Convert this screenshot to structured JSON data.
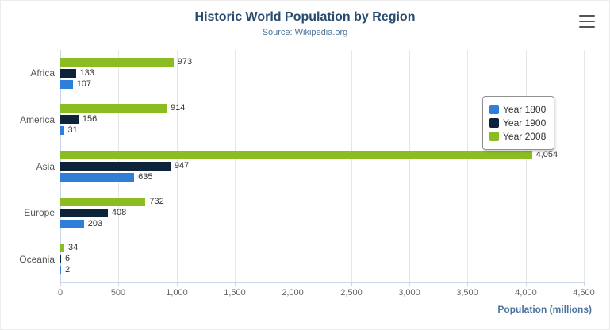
{
  "chart": {
    "title": "Historic World Population by Region",
    "subtitle": "Source: Wikipedia.org",
    "xlabel": "Population (millions)",
    "menu_icon": "hamburger-menu-icon"
  },
  "chart_data": {
    "type": "bar",
    "orientation": "horizontal",
    "title": "Historic World Population by Region",
    "subtitle": "Source: Wikipedia.org",
    "xlabel": "Population (millions)",
    "categories": [
      "Africa",
      "America",
      "Asia",
      "Europe",
      "Oceania"
    ],
    "series": [
      {
        "name": "Year 1800",
        "color": "#2f7ed8",
        "values": [
          107,
          31,
          635,
          203,
          2
        ]
      },
      {
        "name": "Year 1900",
        "color": "#0d233a",
        "values": [
          133,
          156,
          947,
          408,
          6
        ]
      },
      {
        "name": "Year 2008",
        "color": "#8bbc21",
        "values": [
          973,
          914,
          4054,
          732,
          34
        ]
      }
    ],
    "xlim": [
      0,
      4500
    ],
    "xticks": [
      0,
      500,
      1000,
      1500,
      2000,
      2500,
      3000,
      3500,
      4000,
      4500
    ],
    "grid": true,
    "legend_position": "right",
    "bar_visual_order_top_to_bottom": [
      "Year 2008",
      "Year 1900",
      "Year 1800"
    ]
  }
}
